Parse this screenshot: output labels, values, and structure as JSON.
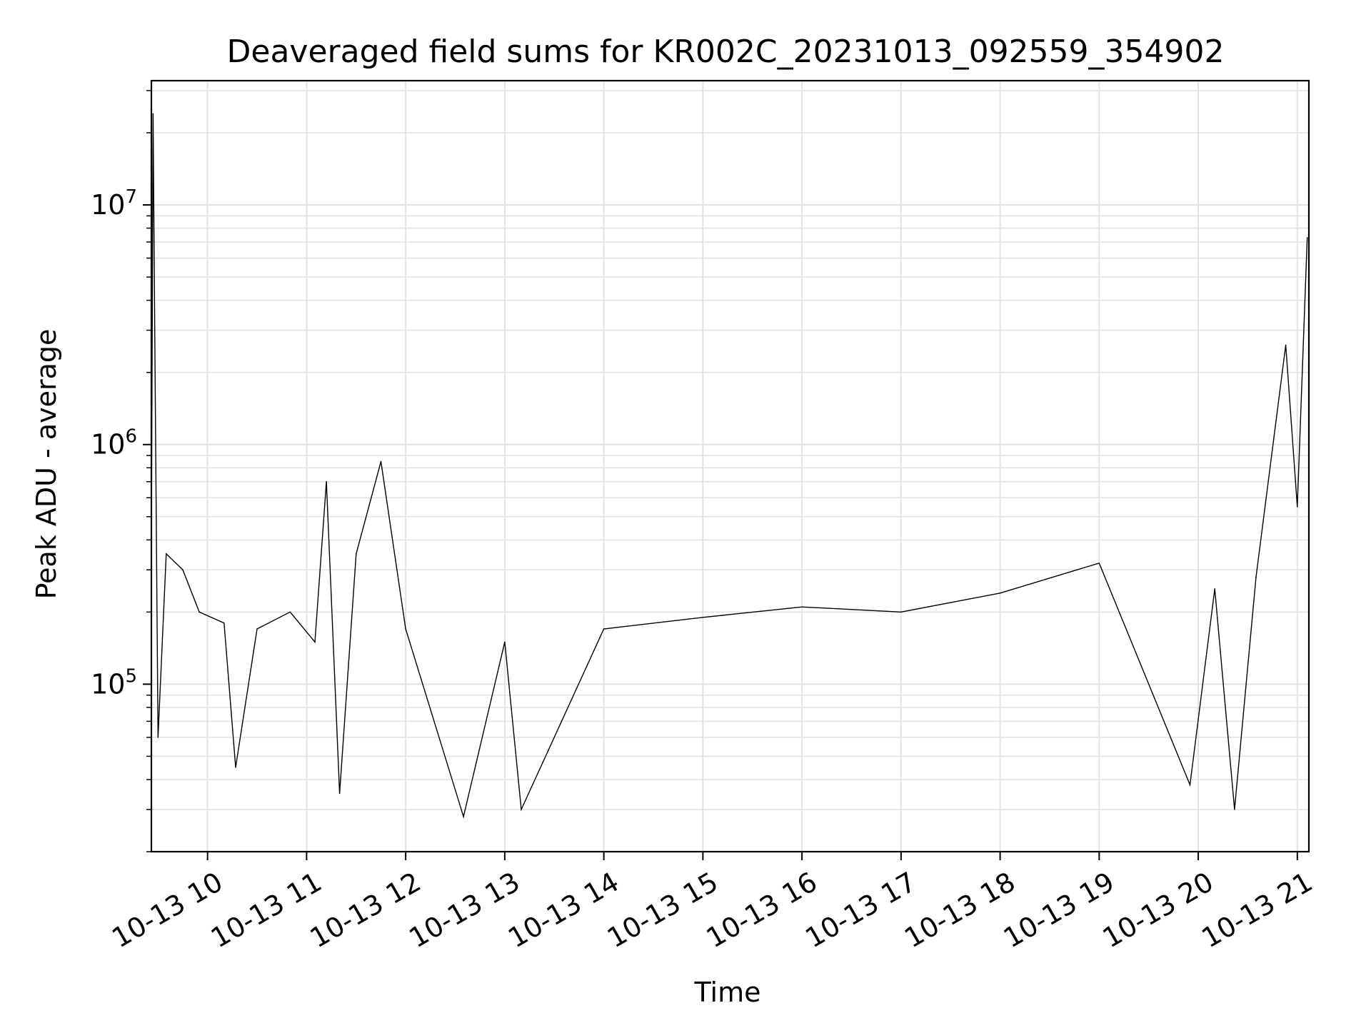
{
  "chart_data": {
    "type": "line",
    "title": "Deaveraged field sums for KR002C_20231013_092559_354902",
    "xlabel": "Time",
    "ylabel": "Peak ADU - average",
    "x_scale": "time",
    "y_scale": "log",
    "xlim": [
      "2023-10-13T09:25:59",
      "2023-10-13T21:07:00"
    ],
    "ylim": [
      20000,
      33000000
    ],
    "x_tick_labels": [
      "10-13 10",
      "10-13 11",
      "10-13 12",
      "10-13 13",
      "10-13 14",
      "10-13 15",
      "10-13 16",
      "10-13 17",
      "10-13 18",
      "10-13 19",
      "10-13 20",
      "10-13 21"
    ],
    "x_tick_values": [
      "2023-10-13T10:00",
      "2023-10-13T11:00",
      "2023-10-13T12:00",
      "2023-10-13T13:00",
      "2023-10-13T14:00",
      "2023-10-13T15:00",
      "2023-10-13T16:00",
      "2023-10-13T17:00",
      "2023-10-13T18:00",
      "2023-10-13T19:00",
      "2023-10-13T20:00",
      "2023-10-13T21:00"
    ],
    "y_ticks": [
      {
        "value": 100000,
        "base": "10",
        "exp": "5"
      },
      {
        "value": 1000000,
        "base": "10",
        "exp": "6"
      },
      {
        "value": 10000000,
        "base": "10",
        "exp": "7"
      }
    ],
    "grid": true,
    "grid_minor_y": true,
    "line_color": "#000000",
    "grid_color": "#e3e3e3",
    "legend": "none",
    "series": [
      {
        "values": [
          {
            "x": "2023-10-13T09:26",
            "y": 400000
          },
          {
            "x": "2023-10-13T09:27",
            "y": 24000000
          },
          {
            "x": "2023-10-13T09:28",
            "y": 3000000
          },
          {
            "x": "2023-10-13T09:30",
            "y": 60000
          },
          {
            "x": "2023-10-13T09:35",
            "y": 350000
          },
          {
            "x": "2023-10-13T09:45",
            "y": 300000
          },
          {
            "x": "2023-10-13T09:55",
            "y": 200000
          },
          {
            "x": "2023-10-13T10:10",
            "y": 180000
          },
          {
            "x": "2023-10-13T10:17",
            "y": 45000
          },
          {
            "x": "2023-10-13T10:30",
            "y": 170000
          },
          {
            "x": "2023-10-13T10:50",
            "y": 200000
          },
          {
            "x": "2023-10-13T11:05",
            "y": 150000
          },
          {
            "x": "2023-10-13T11:12",
            "y": 700000
          },
          {
            "x": "2023-10-13T11:20",
            "y": 35000
          },
          {
            "x": "2023-10-13T11:30",
            "y": 350000
          },
          {
            "x": "2023-10-13T11:45",
            "y": 850000
          },
          {
            "x": "2023-10-13T12:00",
            "y": 170000
          },
          {
            "x": "2023-10-13T12:35",
            "y": 28000
          },
          {
            "x": "2023-10-13T13:00",
            "y": 150000
          },
          {
            "x": "2023-10-13T13:10",
            "y": 30000
          },
          {
            "x": "2023-10-13T14:00",
            "y": 170000
          },
          {
            "x": "2023-10-13T15:00",
            "y": 190000
          },
          {
            "x": "2023-10-13T16:00",
            "y": 210000
          },
          {
            "x": "2023-10-13T17:00",
            "y": 200000
          },
          {
            "x": "2023-10-13T18:00",
            "y": 240000
          },
          {
            "x": "2023-10-13T19:00",
            "y": 320000
          },
          {
            "x": "2023-10-13T19:55",
            "y": 38000
          },
          {
            "x": "2023-10-13T20:10",
            "y": 250000
          },
          {
            "x": "2023-10-13T20:22",
            "y": 30000
          },
          {
            "x": "2023-10-13T20:35",
            "y": 280000
          },
          {
            "x": "2023-10-13T20:53",
            "y": 2600000
          },
          {
            "x": "2023-10-13T21:00",
            "y": 550000
          },
          {
            "x": "2023-10-13T21:06",
            "y": 7300000
          }
        ]
      }
    ]
  }
}
